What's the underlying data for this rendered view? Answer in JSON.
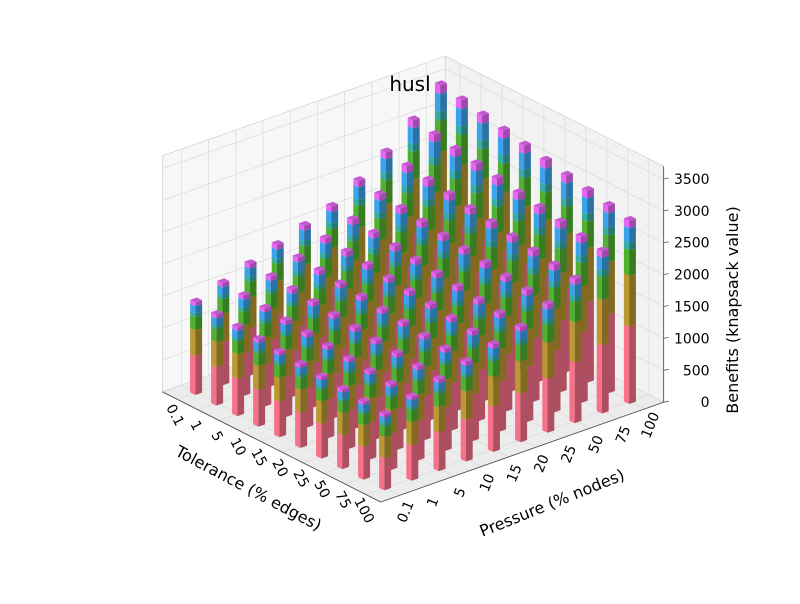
{
  "chart_data": {
    "type": "bar3d-stacked",
    "title": "husl",
    "xlabel": "Tolerance (% edges)",
    "ylabel": "Pressure (% nodes)",
    "zlabel": "Benefits (knapsack value)",
    "x_categories": [
      "0.1",
      "1",
      "5",
      "10",
      "15",
      "20",
      "25",
      "50",
      "75",
      "100"
    ],
    "y_categories": [
      "0.1",
      "1",
      "5",
      "10",
      "15",
      "20",
      "25",
      "50",
      "75",
      "100"
    ],
    "zticks": [
      "0",
      "500",
      "1000",
      "1500",
      "2000",
      "2500",
      "3000",
      "3500"
    ],
    "zlim": [
      0,
      3700
    ],
    "stack_colors": [
      "#f77189",
      "#bb9832",
      "#50b131",
      "#36ada4",
      "#3ba3ec",
      "#e866f4"
    ],
    "stack_fractions": [
      0.42,
      0.28,
      0.14,
      0.04,
      0.08,
      0.04
    ],
    "grid": true,
    "row_totals": [
      1450,
      1600,
      1750,
      1900,
      2050,
      2200,
      2450,
      2750,
      3100,
      3500
    ],
    "col_scale": [
      1.0,
      0.98,
      0.96,
      0.94,
      0.92,
      0.9,
      0.88,
      0.86,
      0.84,
      0.82
    ]
  }
}
